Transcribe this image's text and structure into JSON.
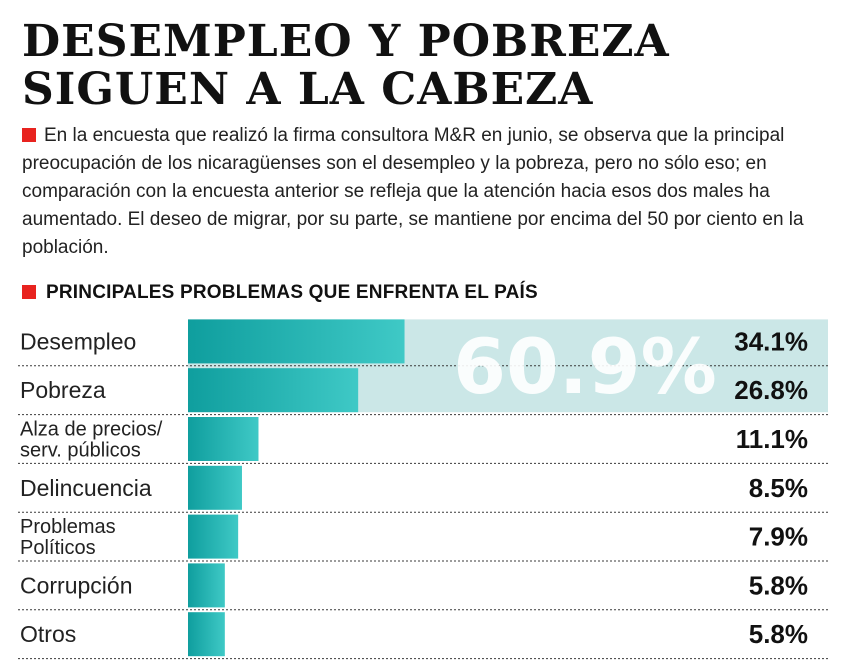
{
  "header": {
    "title_line1": "DESEMPLEO Y POBREZA",
    "title_line2": "SIGUEN A LA CABEZA",
    "intro": "En la encuesta que realizó la firma consultora M&R en junio, se observa que la principal preocupación de los nicaragüenses son el desempleo y la pobreza, pero no sólo eso; en comparación con la encuesta anterior se refleja que la atención hacia esos dos males ha aumentado. El deseo de migrar, por su parte, se mantiene por encima del 50 por ciento en la población."
  },
  "colors": {
    "accent": "#e8231f",
    "bar_dark": "#0f9e9e",
    "bar_light": "#3fc9c6",
    "highlight_band": "#cbe7e7"
  },
  "chart_data": {
    "type": "bar",
    "orientation": "horizontal",
    "title": "PRINCIPALES PROBLEMAS QUE ENFRENTA EL PAÍS",
    "categories": [
      [
        "Desempleo"
      ],
      [
        "Pobreza"
      ],
      [
        "Alza de precios/",
        "serv. públicos"
      ],
      [
        "Delincuencia"
      ],
      [
        "Problemas",
        "Políticos"
      ],
      [
        "Corrupción"
      ],
      [
        "Otros"
      ]
    ],
    "values": [
      34.1,
      26.8,
      11.1,
      8.5,
      7.9,
      5.8,
      5.8
    ],
    "value_labels": [
      "34.1%",
      "26.8%",
      "11.1%",
      "8.5%",
      "7.9%",
      "5.8%",
      "5.8%"
    ],
    "unit": "%",
    "highlight": {
      "label": "60.9%",
      "value": 60.9,
      "rows": [
        0,
        1
      ]
    },
    "xlim": [
      0,
      100
    ]
  }
}
